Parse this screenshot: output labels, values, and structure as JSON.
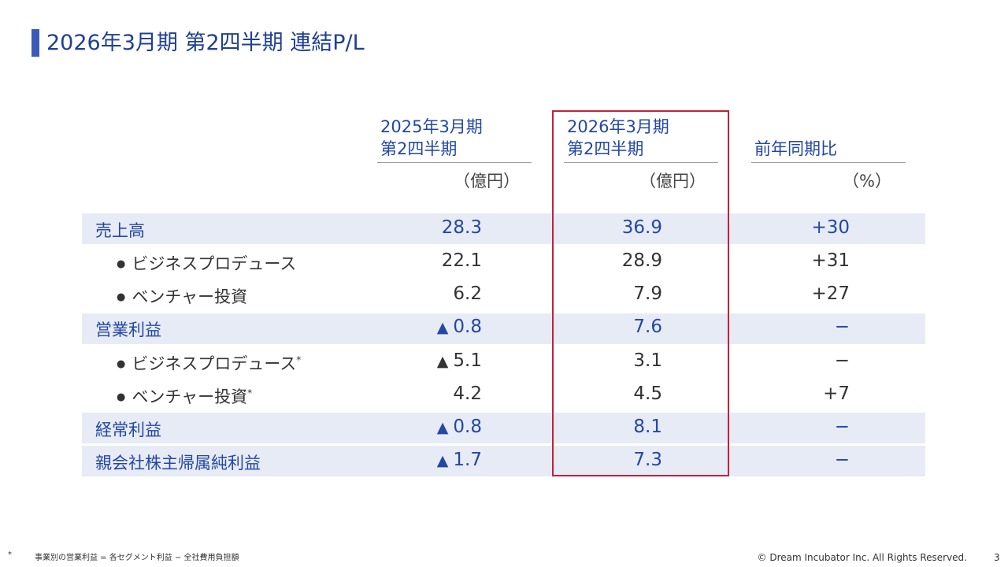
{
  "title": "2026年3月期 第2四半期 連結P/L",
  "columns": [
    {
      "line1": "2025年3月期",
      "line2": "第2四半期",
      "unit": "（億円）"
    },
    {
      "line1": "2026年3月期",
      "line2": "第2四半期",
      "unit": "（億円）"
    },
    {
      "line1": "",
      "line2": "前年同期比",
      "unit": "（%）"
    }
  ],
  "rows": [
    {
      "label": "売上高",
      "marker": "",
      "prev": "28.3",
      "curr": "36.9",
      "yoy": "+30"
    },
    {
      "label": "ビジネスプロデュース",
      "marker": "●",
      "prev": "22.1",
      "curr": "28.9",
      "yoy": "+31"
    },
    {
      "label": "ベンチャー投資",
      "marker": "●",
      "prev": "6.2",
      "curr": "7.9",
      "yoy": "+27"
    },
    {
      "label": "営業利益",
      "marker": "",
      "prev_sign": "▲",
      "prev": "0.8",
      "curr": "7.6",
      "yoy": "−"
    },
    {
      "label": "ビジネスプロデュース",
      "marker": "●",
      "note": "*",
      "prev_sign": "▲",
      "prev": "5.1",
      "curr": "3.1",
      "yoy": "−"
    },
    {
      "label": "ベンチャー投資",
      "marker": "●",
      "note": "*",
      "prev": "4.2",
      "curr": "4.5",
      "yoy": "+7"
    },
    {
      "label": "経常利益",
      "marker": "",
      "prev_sign": "▲",
      "prev": "0.8",
      "curr": "8.1",
      "yoy": "−"
    },
    {
      "label": "親会社株主帰属純利益",
      "marker": "",
      "prev_sign": "▲",
      "prev": "1.7",
      "curr": "7.3",
      "yoy": "−"
    }
  ],
  "footnote": {
    "mark": "*",
    "text": "事業別の営業利益 = 各セグメント利益 − 全社費用負担額"
  },
  "copyright": "© Dream Incubator Inc. All Rights Reserved.",
  "page_number": "3",
  "colors": {
    "accent": "#2347a3",
    "highlight": "#c0223b",
    "band": "#e7ebf6",
    "negative_marker_blue": "#2347a3",
    "negative_marker_dark": "#333333"
  }
}
